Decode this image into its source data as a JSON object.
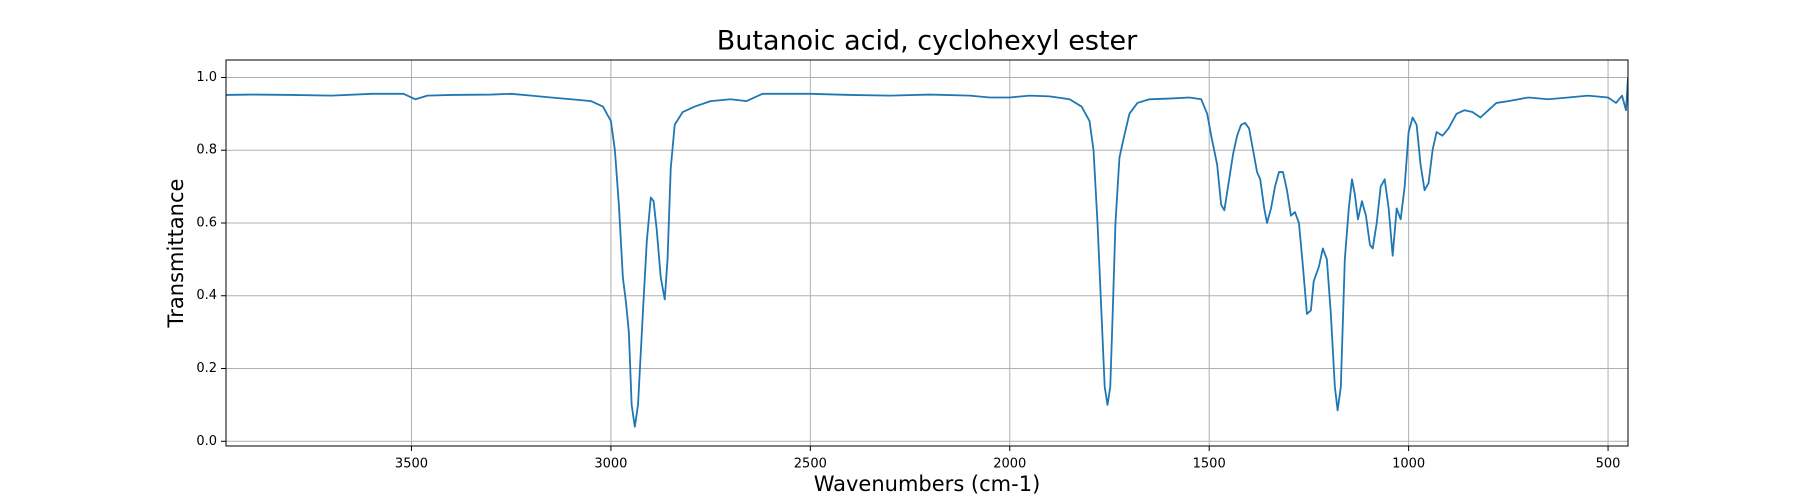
{
  "chart_data": {
    "type": "line",
    "title": "Butanoic acid, cyclohexyl ester",
    "x_label": "Wavenumbers (cm-1)",
    "y_label": "Transmittance",
    "color": "#1f77b4",
    "grid": true,
    "xlim": [
      3965,
      450
    ],
    "ylim": [
      -0.013,
      1.048
    ],
    "xticks": [
      3500,
      3000,
      2500,
      2000,
      1500,
      1000,
      500
    ],
    "yticks": [
      {
        "value": 0,
        "label": "0.0"
      },
      0.2,
      0.4,
      0.6,
      0.8,
      {
        "value": 1,
        "label": "1.0"
      }
    ],
    "x": [
      3965,
      3900,
      3800,
      3700,
      3600,
      3520,
      3490,
      3460,
      3400,
      3300,
      3250,
      3200,
      3150,
      3100,
      3050,
      3020,
      3000,
      2990,
      2980,
      2970,
      2962,
      2955,
      2948,
      2940,
      2932,
      2920,
      2910,
      2900,
      2893,
      2885,
      2875,
      2865,
      2858,
      2850,
      2840,
      2820,
      2790,
      2750,
      2700,
      2660,
      2640,
      2620,
      2580,
      2500,
      2400,
      2300,
      2200,
      2100,
      2050,
      2000,
      1950,
      1900,
      1850,
      1820,
      1800,
      1790,
      1780,
      1770,
      1762,
      1755,
      1748,
      1742,
      1735,
      1725,
      1715,
      1700,
      1680,
      1650,
      1600,
      1550,
      1520,
      1505,
      1495,
      1480,
      1470,
      1462,
      1450,
      1440,
      1430,
      1420,
      1410,
      1400,
      1390,
      1380,
      1372,
      1362,
      1355,
      1345,
      1335,
      1325,
      1315,
      1305,
      1295,
      1285,
      1275,
      1265,
      1255,
      1245,
      1238,
      1225,
      1215,
      1205,
      1195,
      1185,
      1178,
      1170,
      1160,
      1150,
      1142,
      1135,
      1127,
      1117,
      1107,
      1097,
      1090,
      1080,
      1070,
      1060,
      1050,
      1040,
      1030,
      1020,
      1010,
      1000,
      990,
      980,
      970,
      960,
      950,
      940,
      930,
      915,
      900,
      880,
      860,
      840,
      820,
      800,
      780,
      750,
      700,
      650,
      600,
      550,
      500,
      480,
      465,
      455,
      450
    ],
    "values": [
      0.952,
      0.953,
      0.952,
      0.95,
      0.955,
      0.955,
      0.94,
      0.95,
      0.952,
      0.953,
      0.955,
      0.95,
      0.945,
      0.94,
      0.935,
      0.92,
      0.88,
      0.8,
      0.65,
      0.45,
      0.38,
      0.3,
      0.1,
      0.04,
      0.1,
      0.35,
      0.55,
      0.67,
      0.66,
      0.58,
      0.45,
      0.39,
      0.5,
      0.75,
      0.87,
      0.905,
      0.92,
      0.935,
      0.94,
      0.935,
      0.945,
      0.955,
      0.955,
      0.955,
      0.952,
      0.95,
      0.953,
      0.95,
      0.945,
      0.945,
      0.95,
      0.948,
      0.94,
      0.92,
      0.88,
      0.8,
      0.6,
      0.35,
      0.15,
      0.1,
      0.15,
      0.35,
      0.6,
      0.78,
      0.83,
      0.9,
      0.93,
      0.94,
      0.942,
      0.945,
      0.94,
      0.9,
      0.84,
      0.76,
      0.65,
      0.635,
      0.72,
      0.79,
      0.84,
      0.87,
      0.875,
      0.86,
      0.8,
      0.74,
      0.72,
      0.64,
      0.6,
      0.64,
      0.7,
      0.74,
      0.74,
      0.69,
      0.62,
      0.63,
      0.6,
      0.48,
      0.35,
      0.36,
      0.44,
      0.48,
      0.53,
      0.5,
      0.35,
      0.15,
      0.085,
      0.15,
      0.5,
      0.64,
      0.72,
      0.68,
      0.61,
      0.66,
      0.62,
      0.54,
      0.53,
      0.6,
      0.7,
      0.72,
      0.64,
      0.51,
      0.64,
      0.61,
      0.7,
      0.85,
      0.89,
      0.87,
      0.76,
      0.69,
      0.71,
      0.8,
      0.85,
      0.84,
      0.86,
      0.9,
      0.91,
      0.905,
      0.89,
      0.91,
      0.93,
      0.935,
      0.945,
      0.94,
      0.945,
      0.95,
      0.945,
      0.93,
      0.95,
      0.91,
      1.0
    ]
  }
}
